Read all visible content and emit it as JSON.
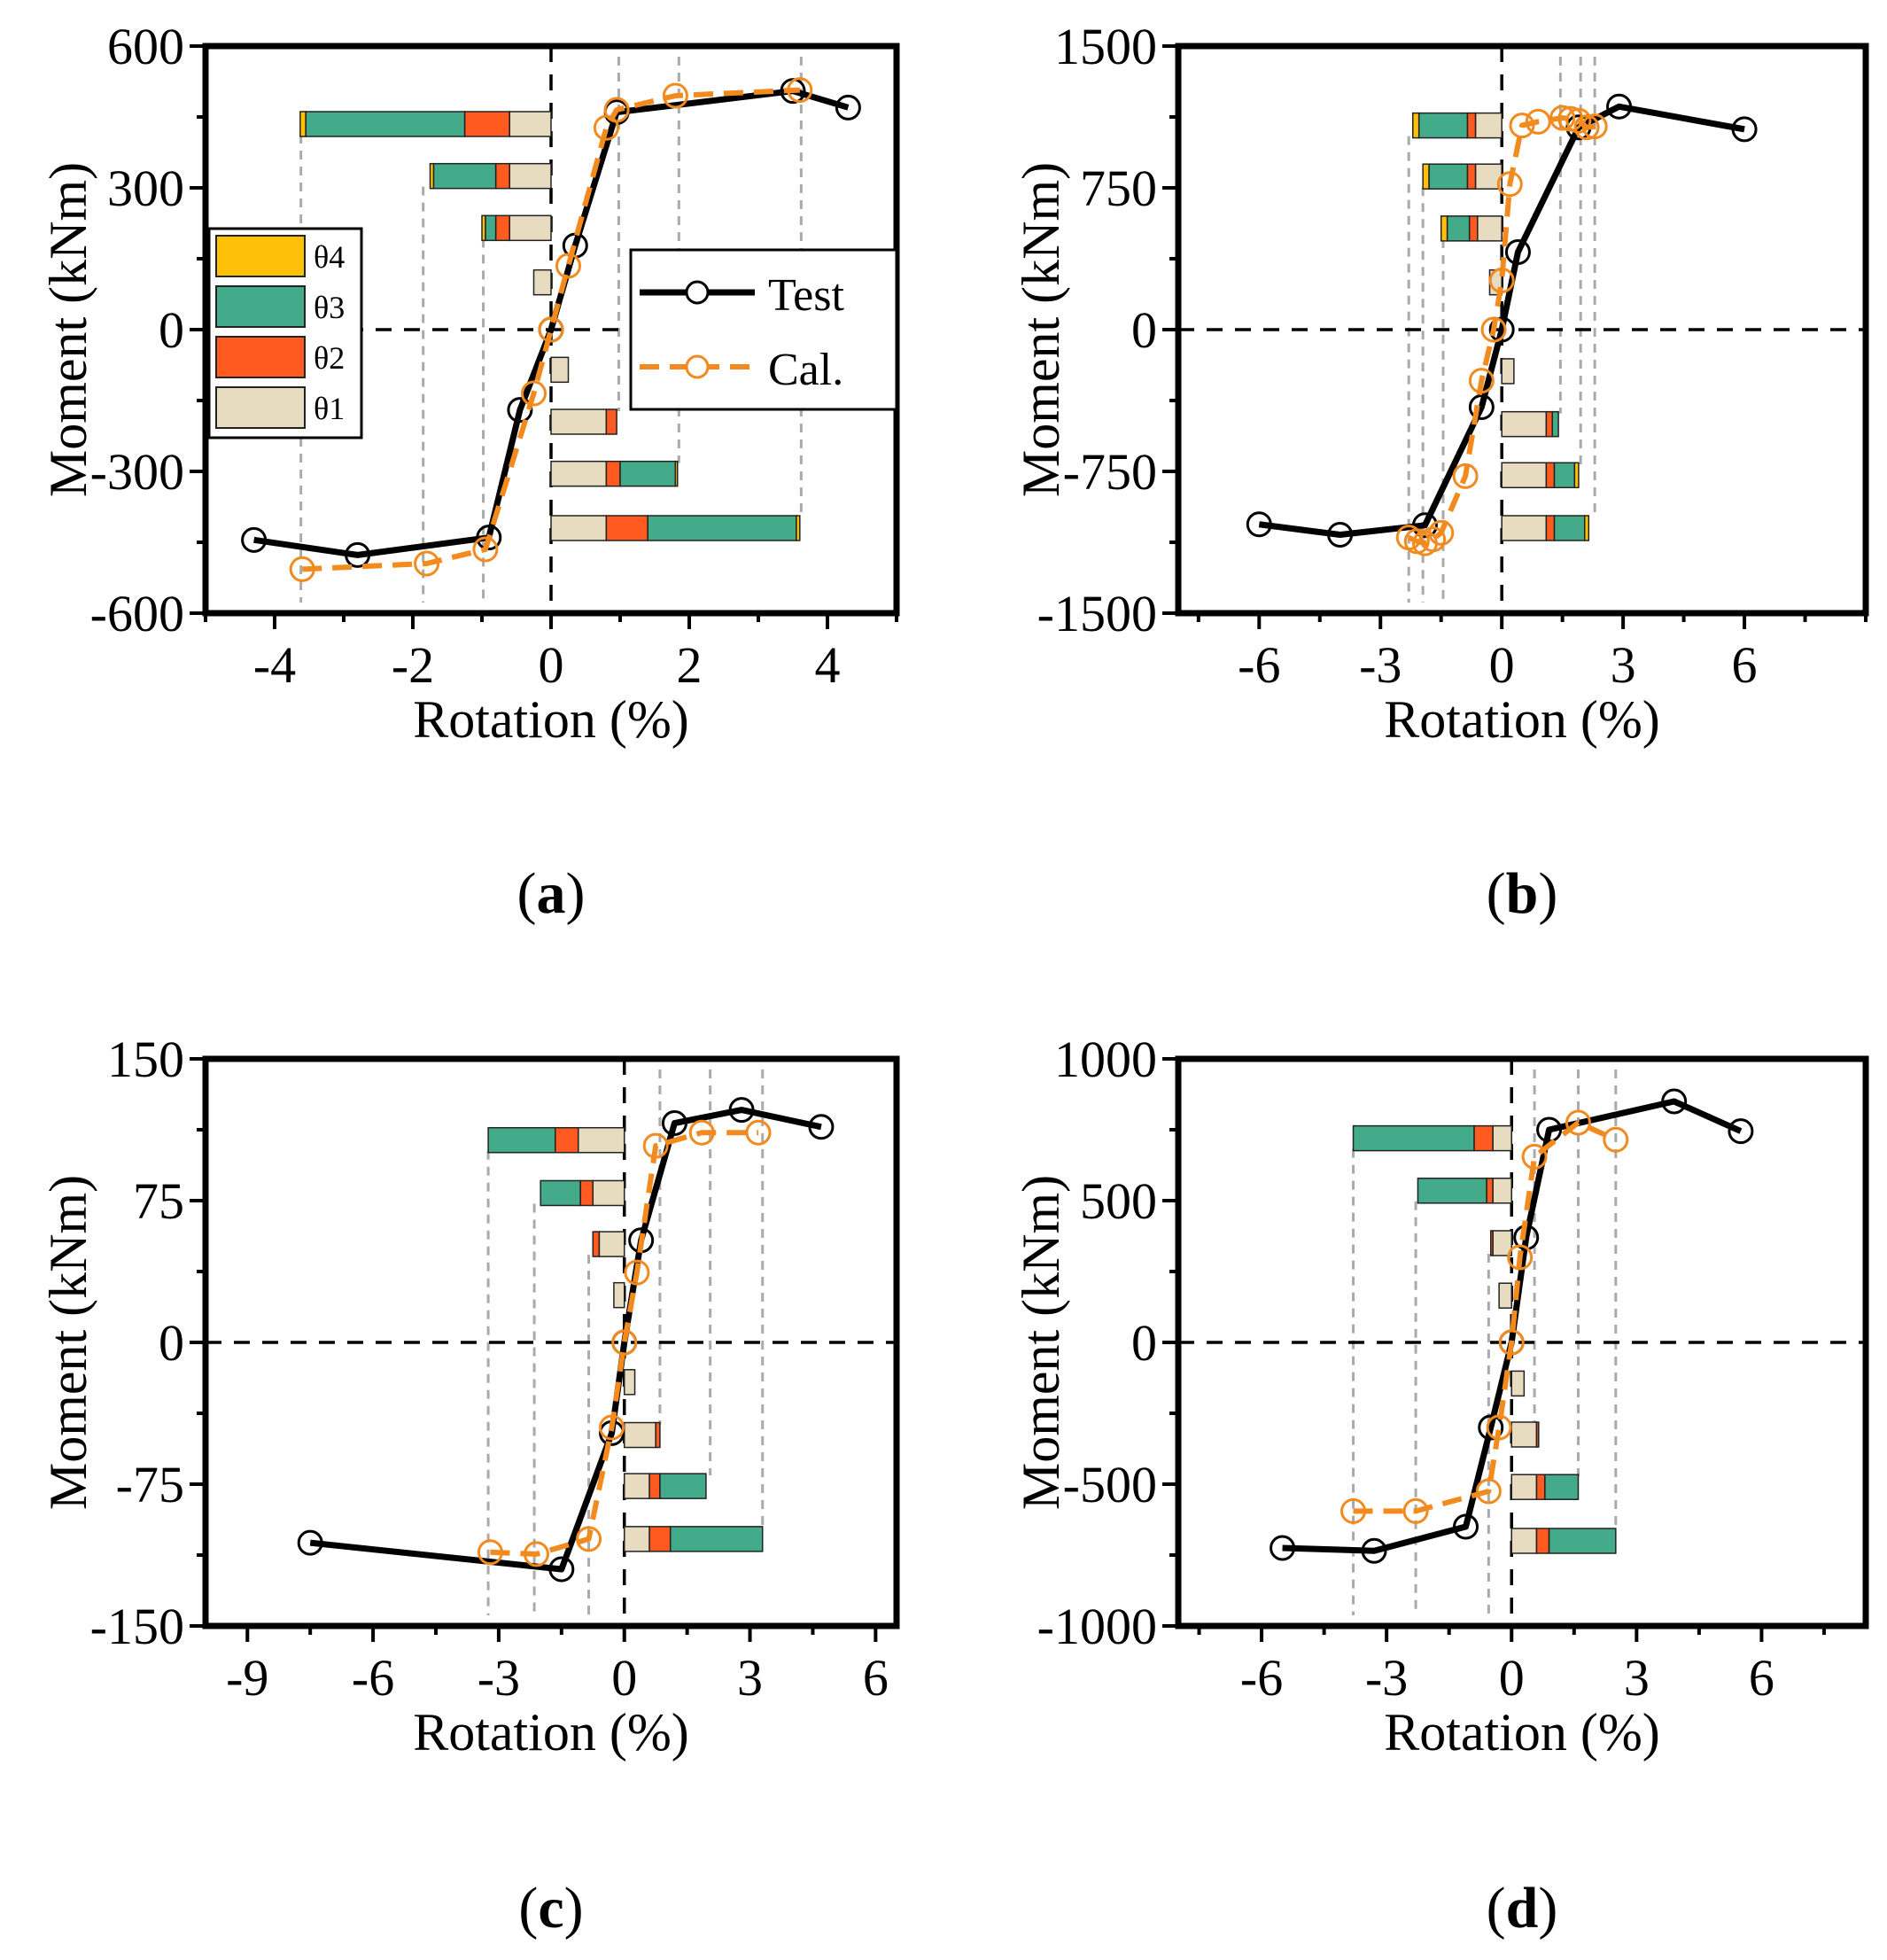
{
  "colors": {
    "theta1": "#E8DCC0",
    "theta2": "#FF5A1F",
    "theta3": "#43AB8A",
    "theta4": "#FFC107",
    "test": "#000000",
    "cal": "#F28A1E",
    "guide": "#AAAAAA"
  },
  "theta_legend": {
    "items": [
      "θ4",
      "θ3",
      "θ2",
      "θ1"
    ],
    "keys": [
      "theta4",
      "theta3",
      "theta2",
      "theta1"
    ]
  },
  "chart_data": [
    {
      "type": "line",
      "panel_label": "a",
      "xlabel": "Rotation (%)",
      "ylabel": "Moment (kNm)",
      "xlim": [
        -5,
        5
      ],
      "ylim": [
        -600,
        600
      ],
      "xticks": [
        -4,
        -2,
        0,
        2,
        4
      ],
      "yticks": [
        -600,
        -300,
        0,
        300,
        600
      ],
      "legend": {
        "entries": [
          "Test",
          "Cal."
        ],
        "placement": "center-right"
      },
      "theta_legend": true,
      "series": [
        {
          "name": "Test",
          "x": [
            -4.3,
            -2.8,
            -0.9,
            -0.45,
            0,
            0.35,
            0.95,
            3.5,
            4.3
          ],
          "y": [
            -445,
            -477,
            -440,
            -170,
            0,
            178,
            460,
            505,
            470
          ]
        },
        {
          "name": "Cal.",
          "x": [
            -3.6,
            -1.8,
            -0.95,
            -0.25,
            0,
            0.25,
            0.8,
            0.95,
            1.8,
            3.6
          ],
          "y": [
            -507,
            -495,
            -465,
            -135,
            0,
            135,
            427,
            465,
            495,
            507
          ]
        }
      ],
      "bars": [
        {
          "y": 435,
          "segments": [
            -0.6,
            -0.65,
            -2.3,
            -0.08
          ]
        },
        {
          "y": 325,
          "segments": [
            -0.6,
            -0.2,
            -0.9,
            -0.05
          ]
        },
        {
          "y": 215,
          "segments": [
            -0.6,
            -0.2,
            -0.15,
            -0.05
          ]
        },
        {
          "y": 100,
          "segments": [
            -0.25
          ]
        },
        {
          "y": -85,
          "segments": [
            0.25
          ]
        },
        {
          "y": -195,
          "segments": [
            0.8,
            0.15
          ]
        },
        {
          "y": -305,
          "segments": [
            0.8,
            0.2,
            0.8,
            0.03
          ]
        },
        {
          "y": -420,
          "segments": [
            0.8,
            0.6,
            2.15,
            0.05
          ]
        }
      ],
      "guides": [
        -3.62,
        -1.85,
        -0.98,
        0.98,
        1.85,
        3.62
      ]
    },
    {
      "type": "line",
      "panel_label": "b",
      "xlabel": "Rotation (%)",
      "ylabel": "Moment (kNm)",
      "xlim": [
        -8,
        9
      ],
      "ylim": [
        -1500,
        1500
      ],
      "xticks": [
        -6,
        -3,
        0,
        3,
        6
      ],
      "yticks": [
        -1500,
        -750,
        0,
        750,
        1500
      ],
      "series": [
        {
          "name": "Test",
          "x": [
            -6,
            -4,
            -1.9,
            -0.5,
            0,
            0.4,
            1.9,
            2.9,
            6
          ],
          "y": [
            -1030,
            -1085,
            -1035,
            -410,
            0,
            410,
            1070,
            1180,
            1060
          ]
        },
        {
          "name": "Cal.",
          "x": [
            -2.3,
            -2.1,
            -1.9,
            -1.7,
            -1.5,
            -0.9,
            -0.5,
            -0.2,
            0,
            0.2,
            0.5,
            0.9,
            1.5,
            1.7,
            1.9,
            2.1,
            2.3
          ],
          "y": [
            -1100,
            -1120,
            -1130,
            -1110,
            -1075,
            -775,
            -270,
            0,
            260,
            770,
            1080,
            1100,
            1120,
            1115,
            1105,
            1070,
            1075
          ]
        }
      ],
      "bars": [
        {
          "y": 1080,
          "segments": [
            -0.65,
            -0.2,
            -1.2,
            -0.15
          ]
        },
        {
          "y": 810,
          "segments": [
            -0.65,
            -0.2,
            -0.95,
            -0.15
          ]
        },
        {
          "y": 535,
          "segments": [
            -0.6,
            -0.2,
            -0.55,
            -0.15
          ]
        },
        {
          "y": 250,
          "segments": [
            -0.3
          ]
        },
        {
          "y": -220,
          "segments": [
            0.3
          ]
        },
        {
          "y": -500,
          "segments": [
            1.1,
            0.15,
            0.15
          ]
        },
        {
          "y": -770,
          "segments": [
            1.1,
            0.2,
            0.5,
            0.1
          ]
        },
        {
          "y": -1050,
          "segments": [
            1.1,
            0.2,
            0.75,
            0.1
          ]
        }
      ],
      "guides": [
        -2.3,
        -1.95,
        -1.45,
        1.45,
        1.95,
        2.3
      ]
    },
    {
      "type": "line",
      "panel_label": "c",
      "xlabel": "Rotation (%)",
      "ylabel": "Moment (kNm)",
      "xlim": [
        -10,
        6.5
      ],
      "ylim": [
        -150,
        150
      ],
      "xticks": [
        -9,
        -6,
        -3,
        0,
        3,
        6
      ],
      "yticks": [
        -150,
        -75,
        0,
        75,
        150
      ],
      "series": [
        {
          "name": "Test",
          "x": [
            -7.5,
            -1.5,
            -0.3,
            0,
            0.4,
            1.2,
            2.8,
            4.7
          ],
          "y": [
            -106,
            -120,
            -48,
            0,
            54,
            116,
            123,
            114
          ]
        },
        {
          "name": "Cal.",
          "x": [
            -3.2,
            -2.1,
            -0.85,
            -0.3,
            0,
            0.3,
            0.75,
            1.85,
            3.2
          ],
          "y": [
            -111,
            -112,
            -104,
            -45,
            0,
            37,
            104,
            111,
            111
          ]
        }
      ],
      "bars": [
        {
          "y": 107,
          "segments": [
            -1.1,
            -0.55,
            -1.6
          ]
        },
        {
          "y": 79,
          "segments": [
            -0.75,
            -0.3,
            -0.95
          ]
        },
        {
          "y": 52,
          "segments": [
            -0.6,
            -0.15
          ]
        },
        {
          "y": 25,
          "segments": [
            -0.25
          ]
        },
        {
          "y": -21,
          "segments": [
            0.25
          ]
        },
        {
          "y": -49,
          "segments": [
            0.75,
            0.1
          ]
        },
        {
          "y": -76,
          "segments": [
            0.6,
            0.25,
            1.1
          ]
        },
        {
          "y": -104,
          "segments": [
            0.6,
            0.5,
            2.2
          ]
        }
      ],
      "guides": [
        -3.25,
        -2.15,
        -0.85,
        0.85,
        2.05,
        3.3
      ]
    },
    {
      "type": "line",
      "panel_label": "d",
      "xlabel": "Rotation (%)",
      "ylabel": "Moment (kNm)",
      "xlim": [
        -8,
        8.5
      ],
      "ylim": [
        -1000,
        1000
      ],
      "xticks": [
        -6,
        -3,
        0,
        3,
        6
      ],
      "yticks": [
        -1000,
        -500,
        0,
        500,
        1000
      ],
      "series": [
        {
          "name": "Test",
          "x": [
            -5.5,
            -3.3,
            -1.1,
            -0.5,
            0,
            0.35,
            0.9,
            3.9,
            5.5
          ],
          "y": [
            -725,
            -735,
            -650,
            -300,
            0,
            370,
            750,
            850,
            745
          ]
        },
        {
          "name": "Cal.",
          "x": [
            -3.8,
            -2.3,
            -0.55,
            -0.3,
            0,
            0.2,
            0.55,
            1.6,
            2.5
          ],
          "y": [
            -595,
            -595,
            -525,
            -300,
            0,
            300,
            655,
            775,
            715
          ]
        }
      ],
      "bars": [
        {
          "y": 720,
          "segments": [
            -0.45,
            -0.45,
            -2.9
          ]
        },
        {
          "y": 535,
          "segments": [
            -0.45,
            -0.15,
            -1.65
          ]
        },
        {
          "y": 350,
          "segments": [
            -0.45,
            -0.05
          ]
        },
        {
          "y": 165,
          "segments": [
            -0.3
          ]
        },
        {
          "y": -145,
          "segments": [
            0.3
          ]
        },
        {
          "y": -325,
          "segments": [
            0.6,
            0.05
          ]
        },
        {
          "y": -510,
          "segments": [
            0.6,
            0.2,
            0.8
          ]
        },
        {
          "y": -700,
          "segments": [
            0.6,
            0.3,
            1.6
          ]
        }
      ],
      "guides": [
        -3.8,
        -2.3,
        -0.55,
        0.55,
        1.6,
        2.5
      ]
    }
  ]
}
